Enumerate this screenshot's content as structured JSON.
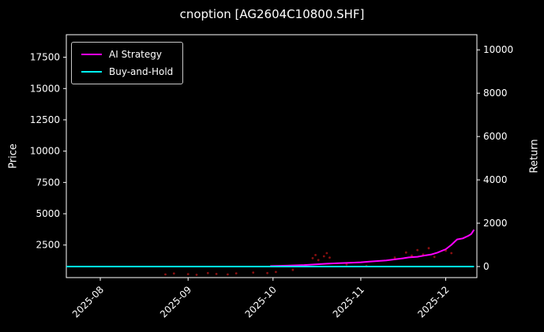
{
  "window": {
    "background": "#000000"
  },
  "chart_data": {
    "type": "line",
    "title": "cnoption [AG2604C10800.SHF]",
    "ylabel_left": "Price",
    "ylabel_right": "Return",
    "fg_color": "#ffffff",
    "bg_color": "#000000",
    "grid": false,
    "legend_position": "upper-left",
    "x_range": [
      "2025-07-20",
      "2025-12-12"
    ],
    "left_ylim": [
      -100,
      19300
    ],
    "right_ylim": [
      -510,
      10700
    ],
    "left_yticks": [
      2500,
      5000,
      7500,
      10000,
      12500,
      15000,
      17500
    ],
    "right_yticks": [
      0,
      2000,
      4000,
      6000,
      8000,
      10000
    ],
    "x_ticks": [
      {
        "date": "2025-08-01",
        "label": "2025-08"
      },
      {
        "date": "2025-09-01",
        "label": "2025-09"
      },
      {
        "date": "2025-10-01",
        "label": "2025-10"
      },
      {
        "date": "2025-11-01",
        "label": "2025-11"
      },
      {
        "date": "2025-12-01",
        "label": "2025-12"
      }
    ],
    "series": [
      {
        "name": "AI Strategy",
        "color": "#ff00ff",
        "axis": "right",
        "points": [
          [
            "2025-09-30",
            20
          ],
          [
            "2025-10-06",
            40
          ],
          [
            "2025-10-12",
            70
          ],
          [
            "2025-10-16",
            100
          ],
          [
            "2025-10-20",
            130
          ],
          [
            "2025-10-24",
            155
          ],
          [
            "2025-10-28",
            175
          ],
          [
            "2025-11-01",
            195
          ],
          [
            "2025-11-04",
            225
          ],
          [
            "2025-11-07",
            255
          ],
          [
            "2025-11-10",
            285
          ],
          [
            "2025-11-13",
            330
          ],
          [
            "2025-11-16",
            380
          ],
          [
            "2025-11-18",
            420
          ],
          [
            "2025-11-21",
            450
          ],
          [
            "2025-11-24",
            520
          ],
          [
            "2025-11-26",
            560
          ],
          [
            "2025-11-28",
            640
          ],
          [
            "2025-12-01",
            800
          ],
          [
            "2025-12-03",
            1000
          ],
          [
            "2025-12-05",
            1250
          ],
          [
            "2025-12-07",
            1300
          ],
          [
            "2025-12-09",
            1420
          ],
          [
            "2025-12-10",
            1500
          ],
          [
            "2025-12-11",
            1700
          ]
        ]
      },
      {
        "name": "Buy-and-Hold",
        "color": "#00ffff",
        "axis": "right",
        "points": [
          [
            "2025-07-20",
            0
          ],
          [
            "2025-12-11",
            0
          ]
        ]
      }
    ],
    "scatter": {
      "name": "trade-price-dots",
      "color": "#8b1010",
      "axis": "left",
      "points": [
        [
          "2025-08-24",
          150
        ],
        [
          "2025-08-27",
          230
        ],
        [
          "2025-09-01",
          180
        ],
        [
          "2025-09-04",
          120
        ],
        [
          "2025-09-08",
          260
        ],
        [
          "2025-09-11",
          190
        ],
        [
          "2025-09-15",
          150
        ],
        [
          "2025-09-18",
          240
        ],
        [
          "2025-09-24",
          300
        ],
        [
          "2025-09-29",
          260
        ],
        [
          "2025-10-02",
          350
        ],
        [
          "2025-10-08",
          520
        ],
        [
          "2025-10-15",
          1450
        ],
        [
          "2025-10-16",
          1700
        ],
        [
          "2025-10-17",
          1300
        ],
        [
          "2025-10-19",
          1600
        ],
        [
          "2025-10-20",
          1850
        ],
        [
          "2025-10-21",
          1500
        ],
        [
          "2025-10-27",
          950
        ],
        [
          "2025-11-03",
          820
        ],
        [
          "2025-11-13",
          1500
        ],
        [
          "2025-11-17",
          1900
        ],
        [
          "2025-11-19",
          1650
        ],
        [
          "2025-11-21",
          2100
        ],
        [
          "2025-11-23",
          1750
        ],
        [
          "2025-11-25",
          2250
        ],
        [
          "2025-11-27",
          1550
        ],
        [
          "2025-12-01",
          2050
        ],
        [
          "2025-12-03",
          1850
        ]
      ]
    }
  }
}
